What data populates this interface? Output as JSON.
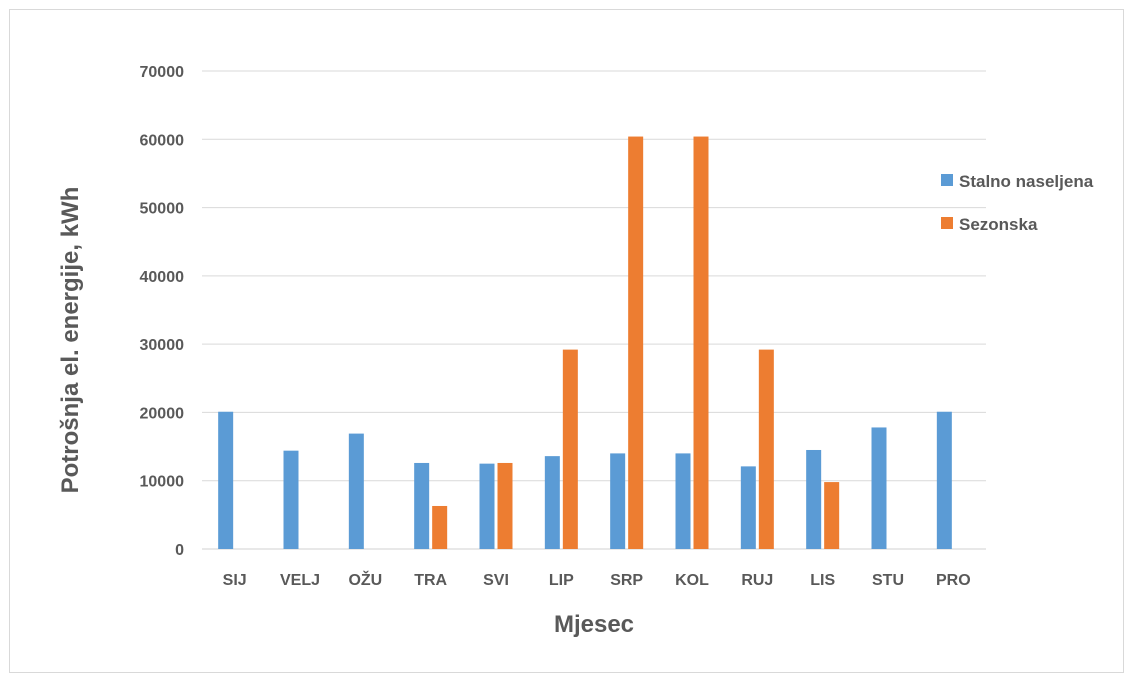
{
  "chart_data": {
    "type": "bar",
    "categories": [
      "SIJ",
      "VELJ",
      "OŽU",
      "TRA",
      "SVI",
      "LIP",
      "SRP",
      "KOL",
      "RUJ",
      "LIS",
      "STU",
      "PRO"
    ],
    "series": [
      {
        "name": "Stalno naseljena",
        "color": "#5b9bd5",
        "values": [
          20100,
          14400,
          16900,
          12600,
          12500,
          13600,
          14000,
          14000,
          12100,
          14500,
          17800,
          20100
        ]
      },
      {
        "name": "Sezonska",
        "color": "#ed7d31",
        "values": [
          0,
          0,
          0,
          6300,
          12600,
          29200,
          60400,
          60400,
          29200,
          9800,
          0,
          0
        ]
      }
    ],
    "xlabel": "Mjesec",
    "ylabel": "Potrošnja el. energije, kWh",
    "ylim": [
      0,
      70000
    ],
    "yticks": [
      0,
      10000,
      20000,
      30000,
      40000,
      50000,
      60000,
      70000
    ],
    "grid": true,
    "legend_position": "right"
  }
}
